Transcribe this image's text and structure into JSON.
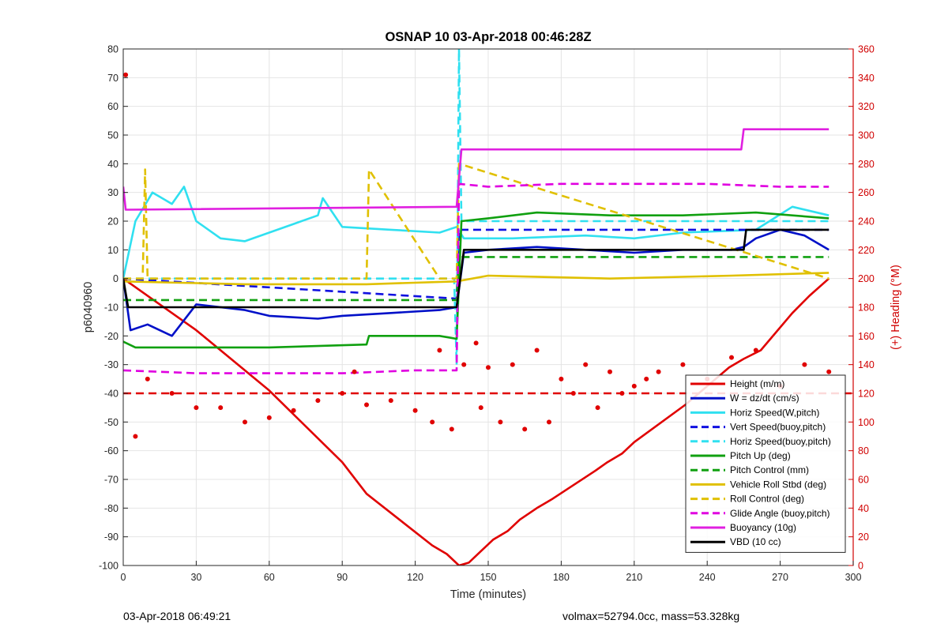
{
  "chart_data": {
    "type": "line",
    "title": "OSNAP 10 03-Apr-2018 00:46:28Z",
    "xlabel": "Time (minutes)",
    "ylabel": "p6040960",
    "y2label": "(+) Heading (°M)",
    "xlim": [
      0,
      300
    ],
    "ylim": [
      -100,
      80
    ],
    "y2lim": [
      0,
      360
    ],
    "xticks": [
      0,
      30,
      60,
      90,
      120,
      150,
      180,
      210,
      240,
      270,
      300
    ],
    "yticks": [
      80,
      70,
      60,
      50,
      40,
      30,
      20,
      10,
      0,
      -10,
      -20,
      -30,
      -40,
      -50,
      -60,
      -70,
      -80,
      -90,
      -100
    ],
    "y2ticks": [
      360,
      340,
      320,
      300,
      280,
      260,
      240,
      220,
      200,
      180,
      160,
      140,
      120,
      100,
      80,
      60,
      40,
      20,
      0
    ],
    "grid": true,
    "legend_position": "bottom-right",
    "series": [
      {
        "name": "Height (m/m)",
        "color": "#e00000",
        "style": "solid",
        "x": [
          0,
          30,
          60,
          90,
          100,
          127,
          133,
          138,
          142,
          147,
          152,
          158,
          163,
          170,
          176,
          194,
          199,
          205,
          210,
          231,
          249,
          255,
          262,
          275,
          282,
          290
        ],
        "values": [
          0,
          -18,
          -39,
          -64,
          -75,
          -93,
          -96,
          -100,
          -99,
          -95,
          -91,
          -88,
          -84,
          -80,
          -77,
          -67,
          -64,
          -61,
          -57,
          -44,
          -31,
          -28,
          -25,
          -12,
          -6,
          0
        ]
      },
      {
        "name": "W = dz/dt (cm/s)",
        "color": "#0010c8",
        "style": "solid",
        "x": [
          0,
          3,
          10,
          20,
          30,
          50,
          60,
          80,
          90,
          110,
          130,
          137,
          140,
          150,
          170,
          190,
          210,
          230,
          250,
          255,
          260,
          270,
          280,
          290
        ],
        "values": [
          0,
          -18,
          -16,
          -20,
          -9,
          -11,
          -13,
          -14,
          -13,
          -12,
          -11,
          -10,
          9,
          10,
          11,
          10,
          9,
          10,
          10,
          11,
          14,
          17,
          15,
          10
        ]
      },
      {
        "name": "Horiz Speed(W,pitch)",
        "color": "#30e0f0",
        "style": "solid",
        "x": [
          0,
          5,
          12,
          20,
          25,
          30,
          40,
          50,
          60,
          70,
          80,
          82,
          90,
          110,
          130,
          137,
          140,
          160,
          190,
          210,
          230,
          260,
          275,
          290
        ],
        "values": [
          0,
          20,
          30,
          26,
          32,
          20,
          14,
          13,
          16,
          19,
          22,
          28,
          18,
          17,
          16,
          18,
          14,
          14,
          15,
          14,
          16,
          17,
          25,
          22
        ]
      },
      {
        "name": "Vert Speed(buoy,pitch)",
        "color": "#1010e0",
        "style": "dashed",
        "x": [
          0,
          137,
          138,
          290
        ],
        "values": [
          0,
          -7,
          17,
          17
        ]
      },
      {
        "name": "Horiz Speed(buoy,pitch)",
        "color": "#30e0f0",
        "style": "dashed",
        "x": [
          0,
          136,
          137,
          138,
          139,
          290
        ],
        "values": [
          0,
          0,
          -30,
          80,
          20,
          20
        ]
      },
      {
        "name": "Pitch Up (deg)",
        "color": "#10a010",
        "style": "solid",
        "x": [
          0,
          5,
          30,
          60,
          100,
          101,
          130,
          137,
          139,
          150,
          170,
          200,
          230,
          260,
          290
        ],
        "values": [
          -22,
          -24,
          -24,
          -24,
          -23,
          -20,
          -20,
          -21,
          20,
          21,
          23,
          22,
          22,
          23,
          21
        ]
      },
      {
        "name": "Pitch Control (mm)",
        "color": "#10a010",
        "style": "dashed",
        "x": [
          0,
          137,
          138,
          290
        ],
        "values": [
          -7.5,
          -7.5,
          7.5,
          7.5
        ]
      },
      {
        "name": "Vehicle Roll Stbd (deg)",
        "color": "#e0c000",
        "style": "solid",
        "x": [
          0,
          50,
          100,
          137,
          150,
          200,
          250,
          290
        ],
        "values": [
          -1,
          -2,
          -2,
          -1,
          1,
          0,
          1,
          2
        ]
      },
      {
        "name": "Roll Control (deg)",
        "color": "#e0c000",
        "style": "dashed",
        "x": [
          0,
          8,
          9,
          10,
          100,
          101,
          130,
          137,
          138,
          290
        ],
        "values": [
          0,
          0,
          38,
          0,
          0,
          38,
          0,
          0,
          40,
          0
        ]
      },
      {
        "name": "Glide Angle (buoy,pitch)",
        "color": "#e000e0",
        "style": "dashed",
        "x": [
          0,
          30,
          60,
          90,
          120,
          137,
          138,
          150,
          180,
          210,
          240,
          270,
          290
        ],
        "values": [
          -32,
          -33,
          -33,
          -33,
          -32,
          -32,
          33,
          32,
          33,
          33,
          33,
          32,
          32
        ]
      },
      {
        "name": "Buoyancy (10g)",
        "color": "#e020e0",
        "style": "solid",
        "x": [
          0,
          1,
          2,
          137,
          139,
          254,
          255,
          290
        ],
        "values": [
          32,
          24,
          24,
          25,
          45,
          45,
          52,
          52
        ]
      },
      {
        "name": "VBD (10 cc)",
        "color": "#000000",
        "style": "solid",
        "x": [
          0,
          2,
          137,
          140,
          255,
          256,
          290
        ],
        "values": [
          0,
          -10,
          -10,
          10,
          10,
          17,
          17
        ]
      }
    ],
    "heading_series": {
      "color": "#e00000",
      "axis": "right",
      "style": "dots",
      "x": [
        1,
        5,
        10,
        20,
        30,
        40,
        50,
        60,
        70,
        80,
        90,
        95,
        100,
        110,
        120,
        127,
        130,
        135,
        140,
        145,
        147,
        150,
        155,
        160,
        165,
        170,
        175,
        180,
        185,
        190,
        195,
        200,
        205,
        210,
        215,
        220,
        230,
        240,
        250,
        260,
        270,
        280,
        290
      ],
      "values": [
        342,
        90,
        130,
        120,
        110,
        110,
        100,
        103,
        108,
        115,
        120,
        135,
        112,
        115,
        108,
        100,
        150,
        95,
        140,
        155,
        110,
        138,
        100,
        140,
        95,
        150,
        100,
        130,
        120,
        140,
        110,
        135,
        120,
        125,
        130,
        135,
        140,
        130,
        145,
        150,
        125,
        140,
        135
      ]
    },
    "heading_reference": {
      "value": 120,
      "color": "#e00000",
      "style": "dashed",
      "axis": "right"
    }
  },
  "footer": {
    "left": "03-Apr-2018 06:49:21",
    "right": "volmax=52794.0cc, mass=53.328kg"
  }
}
